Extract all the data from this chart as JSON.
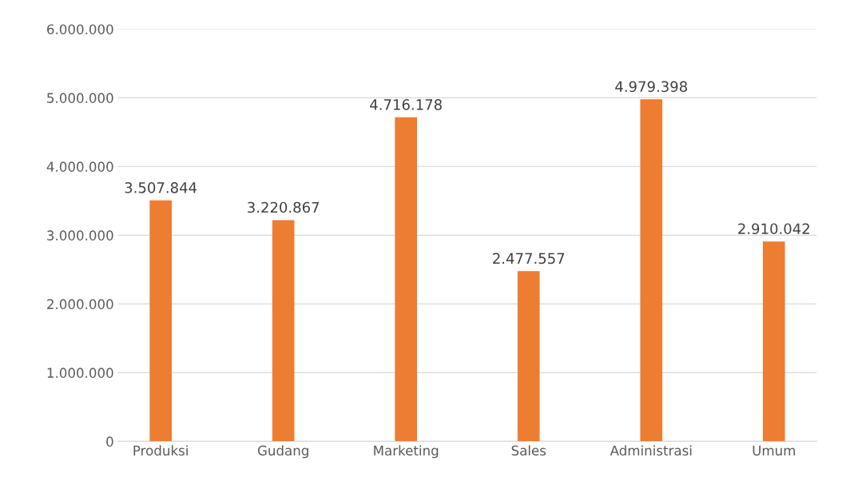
{
  "chart_data": {
    "type": "bar",
    "categories": [
      "Produksi",
      "Gudang",
      "Marketing",
      "Sales",
      "Administrasi",
      "Umum"
    ],
    "values": [
      3507844,
      3220867,
      4716178,
      2477557,
      4979398,
      2910042
    ],
    "color": "#ed7d31",
    "ylim": [
      0,
      6000000
    ],
    "yticks": [
      {
        "value": 0,
        "label": "0"
      },
      {
        "value": 1000000,
        "label": "1.000.000"
      },
      {
        "value": 2000000,
        "label": "2.000.000"
      },
      {
        "value": 3000000,
        "label": "3.000.000"
      },
      {
        "value": 4000000,
        "label": "4.000.000"
      },
      {
        "value": 5000000,
        "label": "5.000.000"
      },
      {
        "value": 6000000,
        "label": "6.000.000"
      }
    ],
    "value_labels": [
      "3.507.844",
      "3.220.867",
      "4.716.178",
      "2.477.557",
      "4.979.398",
      "2.910.042"
    ],
    "grid": "y",
    "legend": false
  }
}
